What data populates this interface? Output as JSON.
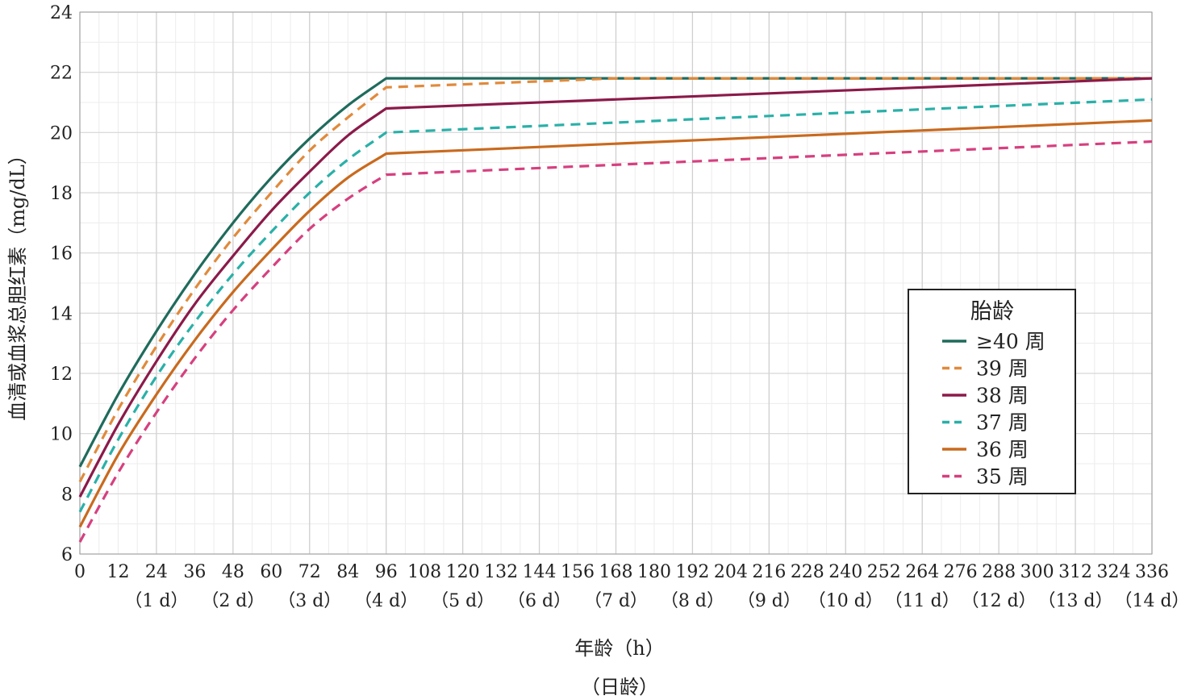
{
  "chart_data": {
    "type": "line",
    "xlabel": "年龄（h）",
    "xlabel2": "（日龄）",
    "ylabel": "血清或血浆总胆红素（mg/dL）",
    "xlim": [
      0,
      336
    ],
    "ylim": [
      6,
      24
    ],
    "x_major_ticks": [
      0,
      12,
      24,
      36,
      48,
      60,
      72,
      84,
      96,
      108,
      120,
      132,
      144,
      156,
      168,
      180,
      192,
      204,
      216,
      228,
      240,
      252,
      264,
      276,
      288,
      300,
      312,
      324,
      336
    ],
    "y_major_ticks": [
      6,
      8,
      10,
      12,
      14,
      16,
      18,
      20,
      22,
      24
    ],
    "day_labels": [
      {
        "x": 24,
        "label": "（1 d）"
      },
      {
        "x": 48,
        "label": "（2 d）"
      },
      {
        "x": 72,
        "label": "（3 d）"
      },
      {
        "x": 96,
        "label": "（4 d）"
      },
      {
        "x": 120,
        "label": "（5 d）"
      },
      {
        "x": 144,
        "label": "（6 d）"
      },
      {
        "x": 168,
        "label": "（7 d）"
      },
      {
        "x": 192,
        "label": "（8 d）"
      },
      {
        "x": 216,
        "label": "（9 d）"
      },
      {
        "x": 240,
        "label": "（10 d）"
      },
      {
        "x": 264,
        "label": "（11 d）"
      },
      {
        "x": 288,
        "label": "（12 d）"
      },
      {
        "x": 312,
        "label": "（13 d）"
      },
      {
        "x": 336,
        "label": "（14 d）"
      }
    ],
    "grid": true,
    "legend": {
      "title": "胎龄",
      "placement": "right"
    },
    "series": [
      {
        "name": "≥40 周",
        "color": "#1f6b5c",
        "dash": false,
        "x": [
          0,
          12,
          24,
          36,
          48,
          60,
          72,
          84,
          96,
          336
        ],
        "y": [
          8.9,
          11.3,
          13.4,
          15.3,
          17.0,
          18.5,
          19.8,
          20.9,
          21.8,
          21.8
        ]
      },
      {
        "name": "39 周",
        "color": "#e08a3c",
        "dash": true,
        "x": [
          0,
          12,
          24,
          36,
          48,
          60,
          72,
          84,
          96,
          168,
          336
        ],
        "y": [
          8.4,
          10.8,
          12.9,
          14.8,
          16.5,
          18.0,
          19.4,
          20.5,
          21.5,
          21.8,
          21.8
        ]
      },
      {
        "name": "38 周",
        "color": "#8b1a4a",
        "dash": false,
        "x": [
          0,
          12,
          24,
          36,
          48,
          60,
          72,
          84,
          96,
          336
        ],
        "y": [
          7.9,
          10.3,
          12.4,
          14.3,
          15.9,
          17.4,
          18.7,
          19.9,
          20.8,
          21.8
        ]
      },
      {
        "name": "37 周",
        "color": "#2ab0a8",
        "dash": true,
        "x": [
          0,
          12,
          24,
          36,
          48,
          60,
          72,
          84,
          96,
          336
        ],
        "y": [
          7.4,
          9.8,
          11.9,
          13.7,
          15.3,
          16.7,
          18.0,
          19.1,
          20.0,
          21.1
        ]
      },
      {
        "name": "36 周",
        "color": "#c96a1e",
        "dash": false,
        "x": [
          0,
          12,
          24,
          36,
          48,
          60,
          72,
          84,
          96,
          336
        ],
        "y": [
          6.9,
          9.3,
          11.3,
          13.1,
          14.7,
          16.1,
          17.4,
          18.5,
          19.3,
          20.4
        ]
      },
      {
        "name": "35 周",
        "color": "#d6407f",
        "dash": true,
        "x": [
          0,
          12,
          24,
          36,
          48,
          60,
          72,
          84,
          96,
          336
        ],
        "y": [
          6.4,
          8.7,
          10.7,
          12.5,
          14.1,
          15.5,
          16.8,
          17.8,
          18.6,
          19.7
        ]
      }
    ]
  }
}
